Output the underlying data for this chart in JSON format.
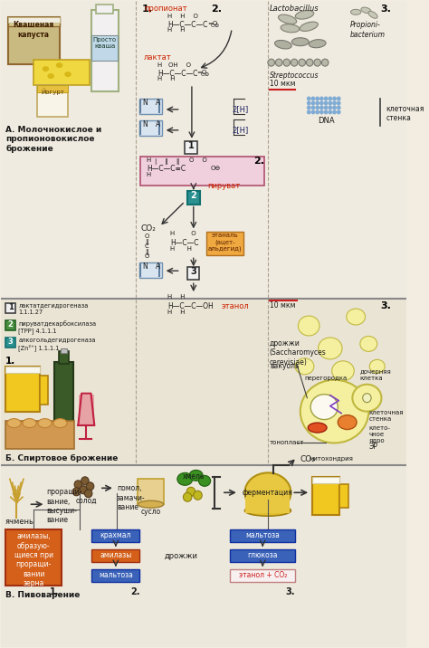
{
  "bg_color": "#f2ede0",
  "section_a_bg": "#f0ebe0",
  "section_b_bg": "#eae4d4",
  "section_c_bg": "#ede8dc",
  "divider_color": "#888888",
  "section_A_label": "А. Молочнокислое и\nпропионовокислое\nброжение",
  "section_B_label": "Б. Спиртовое брожение",
  "section_C_label": "В. Пивоварение",
  "enzyme1_num": "1",
  "enzyme1_text": "лактатдегидрогеназа\n1.1.1.27",
  "enzyme2_num": "2",
  "enzyme2_text": "пируватдекарбоксилаза\n[ТРР] 4.1.1.1",
  "enzyme3_num": "3",
  "enzyme3_text": "алкогольдегидрогеназа\n[Zn²⁺] 1.1.1.1",
  "propionate_label": "пропионат",
  "lactate_label": "лактат",
  "pyruvate_label": "пируват",
  "ethanal_label": "этаналь\n(ацет-\nальдегид)",
  "ethanol_label": "этанол",
  "co2_label": "CO₂",
  "two_h": "2[H]",
  "bacteria1": "Lactobacillus",
  "bacteria2": "Propioni-\nbacterium",
  "streptococcus": "Streptococcus",
  "scale1": "10 мкм",
  "dna_label": "DNA",
  "cell_wall_label": "клеточная\nстенка",
  "scale2": "10 мкм",
  "yeast_label": "дрожжи\n(Saccharomyces\ncerevisiae)",
  "vacuole_label": "вакуоль",
  "partition_label": "перегородка",
  "daughter_label": "дочерняя\nклетка",
  "nucleus_label": "клето-\nчное\nядро",
  "er_label": "ЭР",
  "cell_wall2_label": "клеточная\nстенка",
  "tonoplast_label": "тонопласт",
  "mitochondria_label": "митохондрия",
  "barley_label": "ячмень",
  "germination_label": "проращи-\nвание,\nвысуши-\nвание",
  "malt_label": "солод",
  "grinding_label": "помол,\nзамачи-\nвание",
  "wort_label": "сусло",
  "hops_label": "хмель",
  "fermentation_label": "ферментация",
  "yeast2_label": "дрожжи",
  "amylase_box": "амилазы,\nобразую-\nщиеся при\nпроращи-\nвании\nзерна",
  "starch_label": "крахмал",
  "amylase2_label": "амилазы",
  "maltose1_label": "мальтоза",
  "maltose2_label": "мальтоза",
  "glucose_label": "глюкоза",
  "ethanol_co2_label": "этанол + CO₂",
  "orange_color": "#d4601a",
  "blue_color": "#3a62b8",
  "teal_color": "#2a9090",
  "green_color": "#4a9040",
  "pink_bg": "#f0d0dc",
  "ethanal_box_color": "#f0a840",
  "arrow_color": "#333333",
  "nad_box_color": "#d8e4f0",
  "nad_border_color": "#7090b0"
}
